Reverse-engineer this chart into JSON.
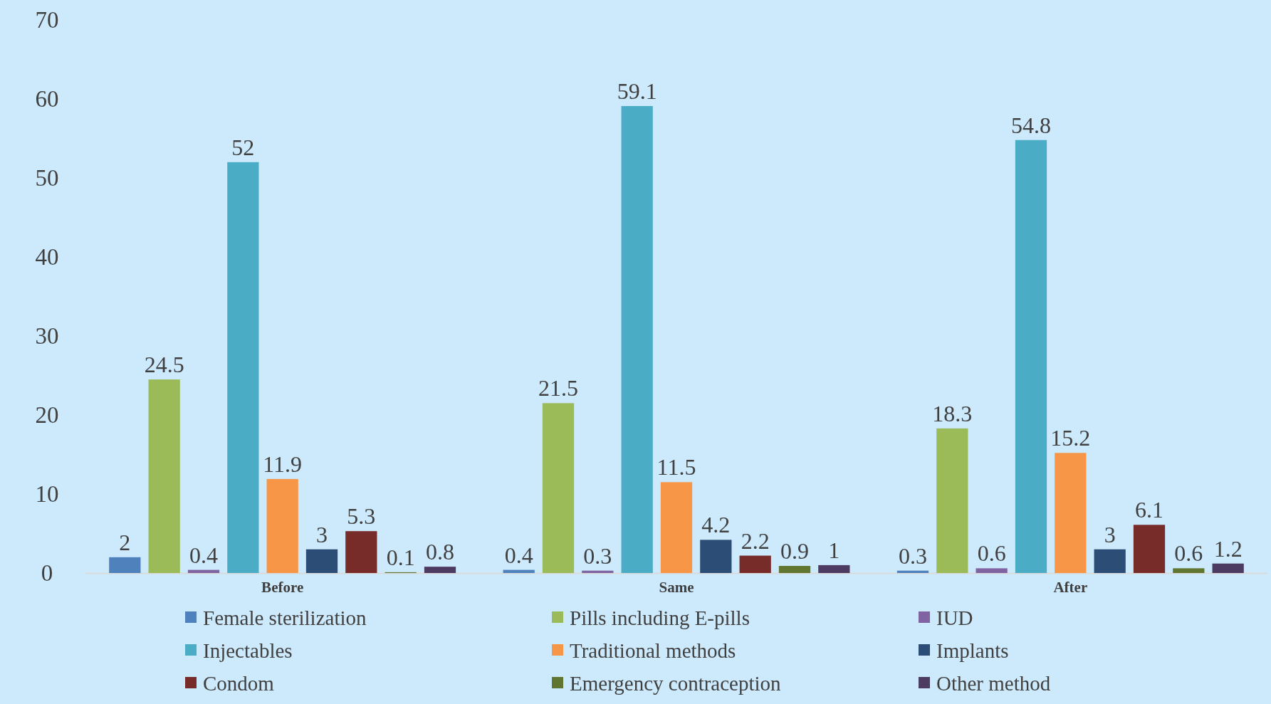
{
  "chart_data": {
    "type": "bar",
    "categories": [
      "Before",
      "Same",
      "After"
    ],
    "series": [
      {
        "name": "Female sterilization",
        "color": "#4f81bd",
        "values": [
          2,
          0.4,
          0.3
        ]
      },
      {
        "name": "Pills including E-pills",
        "color": "#9bbb59",
        "values": [
          24.5,
          21.5,
          18.3
        ]
      },
      {
        "name": "IUD",
        "color": "#8064a2",
        "values": [
          0.4,
          0.3,
          0.6
        ]
      },
      {
        "name": "Injectables",
        "color": "#4bacc6",
        "values": [
          52,
          59.1,
          54.8
        ]
      },
      {
        "name": "Traditional methods",
        "color": "#f79646",
        "values": [
          11.9,
          11.5,
          15.2
        ]
      },
      {
        "name": "Implants",
        "color": "#2c4d75",
        "values": [
          3,
          4.2,
          3
        ]
      },
      {
        "name": "Condom",
        "color": "#772c2a",
        "values": [
          5.3,
          2.2,
          6.1
        ]
      },
      {
        "name": "Emergency contraception",
        "color": "#5f7530",
        "values": [
          0.1,
          0.9,
          0.6
        ]
      },
      {
        "name": "Other method",
        "color": "#4d3b62",
        "values": [
          0.8,
          1,
          1.2
        ]
      }
    ],
    "ylim": [
      0,
      70
    ],
    "yticks": [
      0,
      10,
      20,
      30,
      40,
      50,
      60,
      70
    ],
    "grid": false,
    "legend": "bottom",
    "data_labels": true
  }
}
